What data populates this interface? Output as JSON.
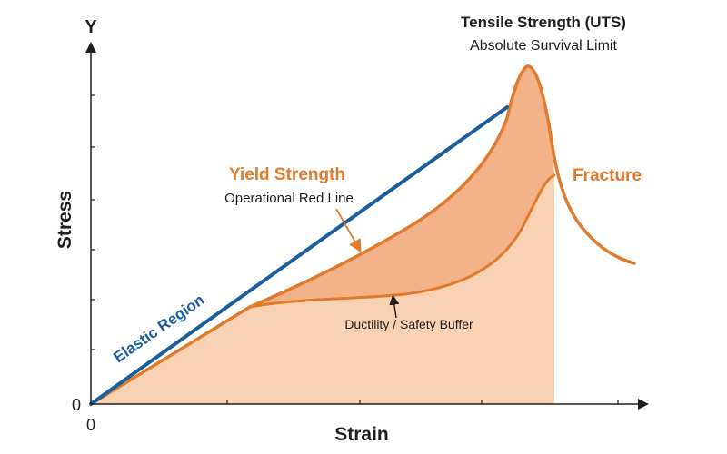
{
  "colors": {
    "background": "#ffffff",
    "axis": "#1f1f1f",
    "elastic_line": "#1b5e9e",
    "curve_orange": "#e07a2c",
    "fill_light": "#f9d2b3",
    "fill_mid": "#f3b287",
    "text_dark": "#1f1f1f"
  },
  "axes": {
    "y_letter": "Y",
    "y_label": "Stress",
    "x_label": "Strain",
    "origin_x_label": "0",
    "origin_y_label": "0"
  },
  "annotations": {
    "elastic": "Elastic Region",
    "yield_title": "Yield Strength",
    "yield_subtitle": "Operational Red Line",
    "uts_title": "Tensile Strength (UTS)",
    "uts_subtitle": "Absolute Survival Limit",
    "fracture": "Fracture",
    "ductility": "Ductility / Safety Buffer"
  }
}
